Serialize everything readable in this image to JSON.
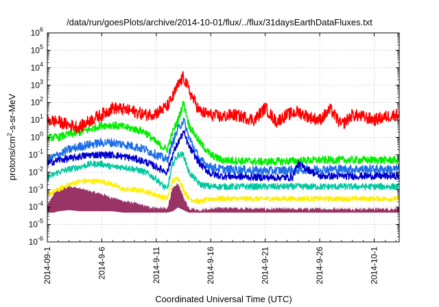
{
  "chart_data": {
    "type": "line",
    "title": "/data/run/goesPlots/archive/2014-10-01/flux/../flux/31daysEarthDataFluxes.txt",
    "xlabel": "Coordinated Universal Time (UTC)",
    "ylabel": "protons/cm²-s-sr-MeV",
    "ylabel_parts": {
      "pre": "protons/cm",
      "sup": "2",
      "post": "-s-sr-MeV"
    },
    "yscale": "log",
    "ylim_exponent": [
      -6,
      6
    ],
    "y_tick_base": "10",
    "y_tick_exponents": [
      "-6",
      "-5",
      "-4",
      "-3",
      "-2",
      "-1",
      "0",
      "1",
      "2",
      "3",
      "4",
      "5",
      "6"
    ],
    "xlim_days": [
      0,
      32.3
    ],
    "x_ticks": [
      {
        "label": "2014-09-1",
        "day": 0
      },
      {
        "label": "2014-9-6",
        "day": 5
      },
      {
        "label": "2014-9-11",
        "day": 10
      },
      {
        "label": "2014-9-16",
        "day": 15
      },
      {
        "label": "2014-9-21",
        "day": 20
      },
      {
        "label": "2014-9-26",
        "day": 25
      },
      {
        "label": "2014-10-1",
        "day": 30
      }
    ],
    "grid": true,
    "series": [
      {
        "color": "#ff0000",
        "x": [
          0,
          1,
          2,
          3,
          4,
          5,
          6,
          7,
          8,
          9,
          10,
          11,
          11.5,
          12,
          12.5,
          13,
          14,
          15,
          16,
          17,
          18,
          19,
          20,
          21,
          22,
          23,
          24,
          25,
          26,
          27,
          28,
          29,
          30,
          31,
          32
        ],
        "y": [
          10,
          8,
          5,
          4,
          10,
          20,
          50,
          40,
          30,
          20,
          25,
          60,
          200,
          1000,
          3000,
          500,
          30,
          20,
          15,
          20,
          15,
          10,
          50,
          8,
          20,
          30,
          15,
          10,
          40,
          5,
          20,
          15,
          10,
          15,
          20
        ],
        "noise": 0.35
      },
      {
        "color": "#00ee00",
        "x": [
          0,
          1,
          2,
          3,
          4,
          5,
          6,
          7,
          8,
          9,
          10,
          11,
          11.5,
          12,
          12.5,
          13,
          14,
          15,
          16,
          20,
          25,
          32
        ],
        "y": [
          1,
          1,
          1.5,
          2,
          3,
          5,
          5,
          4,
          3,
          2,
          0.5,
          0.2,
          2,
          10,
          100,
          5,
          0.5,
          0.1,
          0.05,
          0.04,
          0.05,
          0.05
        ],
        "noise": 0.22
      },
      {
        "color": "#1e6fe8",
        "x": [
          0,
          1,
          2,
          3,
          4,
          5,
          6,
          7,
          8,
          9,
          10,
          11,
          11.5,
          12,
          12.5,
          13,
          14,
          15,
          16,
          20,
          25,
          32
        ],
        "y": [
          0.05,
          0.1,
          0.2,
          0.3,
          0.4,
          0.5,
          0.5,
          0.4,
          0.3,
          0.2,
          0.1,
          0.05,
          0.5,
          3,
          10,
          1,
          0.05,
          0.02,
          0.015,
          0.012,
          0.015,
          0.015
        ],
        "noise": 0.25
      },
      {
        "color": "#0000cc",
        "x": [
          0,
          1,
          2,
          3,
          4,
          5,
          6,
          7,
          8,
          9,
          10,
          11,
          11.5,
          12,
          12.5,
          13,
          14,
          15,
          16,
          20,
          22.5,
          23,
          25,
          32
        ],
        "y": [
          0.03,
          0.05,
          0.06,
          0.08,
          0.1,
          0.1,
          0.1,
          0.08,
          0.06,
          0.04,
          0.02,
          0.01,
          0.1,
          0.5,
          2,
          0.3,
          0.03,
          0.008,
          0.006,
          0.005,
          0.005,
          0.03,
          0.006,
          0.006
        ],
        "noise": 0.2
      },
      {
        "color": "#00c8a0",
        "x": [
          0,
          1,
          2,
          3,
          4,
          5,
          6,
          7,
          8,
          9,
          10,
          11,
          11.5,
          12,
          12.5,
          13,
          14,
          15,
          16,
          20,
          25,
          32
        ],
        "y": [
          0.005,
          0.01,
          0.015,
          0.02,
          0.03,
          0.03,
          0.02,
          0.02,
          0.015,
          0.01,
          0.004,
          0.001,
          0.03,
          0.1,
          0.1,
          0.01,
          0.002,
          0.0015,
          0.0015,
          0.0015,
          0.0015,
          0.0015
        ],
        "noise": 0.18
      },
      {
        "color": "#ffee00",
        "x": [
          0,
          1,
          2,
          3,
          4,
          5,
          6,
          7,
          8,
          9,
          10,
          11,
          11.5,
          12,
          12.5,
          13,
          14,
          15,
          16,
          20,
          25,
          32
        ],
        "y": [
          0.0005,
          0.001,
          0.002,
          0.003,
          0.003,
          0.003,
          0.002,
          0.001,
          0.001,
          0.0008,
          0.0005,
          0.0003,
          0.003,
          0.005,
          0.001,
          0.0003,
          0.0002,
          0.0003,
          0.0003,
          0.0003,
          0.0003,
          0.0003
        ],
        "noise": 0.15
      },
      {
        "color": "#993366",
        "x": [
          0,
          0.6,
          1,
          2,
          3,
          4,
          5,
          6,
          7,
          8,
          9,
          10,
          11,
          11.5,
          12,
          12.5,
          13,
          14,
          15,
          16,
          20,
          25,
          32
        ],
        "y": [
          0.0001,
          0.0005,
          0.001,
          0.0015,
          0.001,
          0.0007,
          0.0005,
          0.0003,
          0.0002,
          0.00015,
          0.0001,
          8e-05,
          7e-05,
          0.001,
          0.002,
          0.0003,
          8e-05,
          6e-05,
          7e-05,
          8e-05,
          7e-05,
          7e-05,
          7e-05
        ],
        "band": [
          5e-05,
          5e-05,
          6e-05,
          7e-05,
          6e-05,
          6e-05,
          6e-05,
          6e-05,
          5e-05,
          5e-05,
          5e-05,
          5e-05,
          5e-05,
          6e-05,
          0.0001,
          7e-05,
          5e-05,
          5e-05,
          5e-05,
          5e-05,
          5e-05,
          5e-05,
          5e-05
        ],
        "noise": 0.1
      }
    ]
  }
}
